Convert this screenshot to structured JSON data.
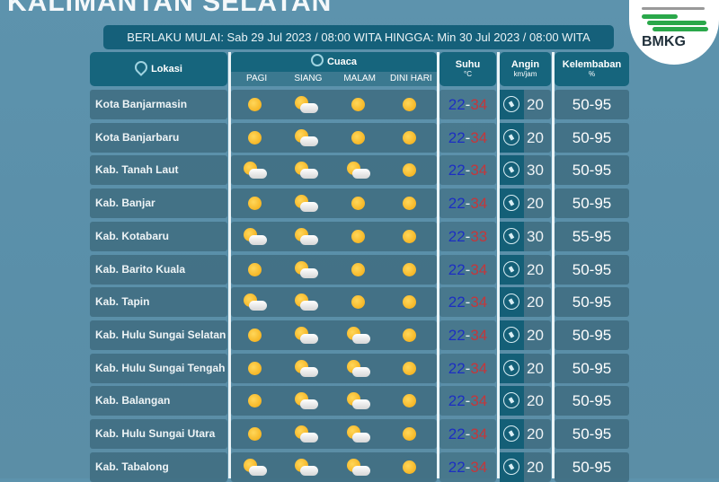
{
  "title": "KALIMANTAN SELATAN",
  "logo_text": "BMKG",
  "valid_period": "BERLAKU MULAI: Sab 29 Jul 2023 / 08:00 WITA HINGGA: Min 30 Jul 2023 / 08:00 WITA",
  "headers": {
    "lokasi": "Lokasi",
    "cuaca": "Cuaca",
    "cuaca_sub": [
      "PAGI",
      "SIANG",
      "MALAM",
      "DINI HARI"
    ],
    "suhu": "Suhu",
    "suhu_unit": "°C",
    "angin": "Angin",
    "angin_unit": "km/jam",
    "kelembaban": "Kelembaban",
    "kelembaban_unit": "%"
  },
  "colors": {
    "min_temp": "#1d2fc2",
    "max_temp": "#c4373b",
    "header": "#16657d"
  },
  "weather_icons": {
    "s": "sunny-icon",
    "c": "partly-cloudy-icon"
  },
  "rows": [
    {
      "lokasi": "Kota Banjarmasin",
      "cuaca": [
        "s",
        "c",
        "s",
        "s"
      ],
      "min": "22",
      "max": "34",
      "angin": "20",
      "kelembaban": "50-95"
    },
    {
      "lokasi": "Kota Banjarbaru",
      "cuaca": [
        "s",
        "c",
        "s",
        "s"
      ],
      "min": "22",
      "max": "34",
      "angin": "20",
      "kelembaban": "50-95"
    },
    {
      "lokasi": "Kab. Tanah Laut",
      "cuaca": [
        "c",
        "c",
        "c",
        "s"
      ],
      "min": "22",
      "max": "34",
      "angin": "30",
      "kelembaban": "50-95"
    },
    {
      "lokasi": "Kab. Banjar",
      "cuaca": [
        "s",
        "c",
        "s",
        "s"
      ],
      "min": "22",
      "max": "34",
      "angin": "20",
      "kelembaban": "50-95"
    },
    {
      "lokasi": "Kab. Kotabaru",
      "cuaca": [
        "c",
        "c",
        "s",
        "s"
      ],
      "min": "22",
      "max": "33",
      "angin": "30",
      "kelembaban": "55-95"
    },
    {
      "lokasi": "Kab. Barito Kuala",
      "cuaca": [
        "s",
        "c",
        "s",
        "s"
      ],
      "min": "22",
      "max": "34",
      "angin": "20",
      "kelembaban": "50-95"
    },
    {
      "lokasi": "Kab. Tapin",
      "cuaca": [
        "c",
        "c",
        "s",
        "s"
      ],
      "min": "22",
      "max": "34",
      "angin": "20",
      "kelembaban": "50-95"
    },
    {
      "lokasi": "Kab. Hulu Sungai Selatan",
      "cuaca": [
        "s",
        "c",
        "c",
        "s"
      ],
      "min": "22",
      "max": "34",
      "angin": "20",
      "kelembaban": "50-95"
    },
    {
      "lokasi": "Kab. Hulu Sungai Tengah",
      "cuaca": [
        "s",
        "c",
        "c",
        "s"
      ],
      "min": "22",
      "max": "34",
      "angin": "20",
      "kelembaban": "50-95"
    },
    {
      "lokasi": "Kab. Balangan",
      "cuaca": [
        "s",
        "c",
        "c",
        "s"
      ],
      "min": "22",
      "max": "34",
      "angin": "20",
      "kelembaban": "50-95"
    },
    {
      "lokasi": "Kab. Hulu Sungai Utara",
      "cuaca": [
        "s",
        "c",
        "c",
        "s"
      ],
      "min": "22",
      "max": "34",
      "angin": "20",
      "kelembaban": "50-95"
    },
    {
      "lokasi": "Kab. Tabalong",
      "cuaca": [
        "c",
        "c",
        "c",
        "s"
      ],
      "min": "22",
      "max": "34",
      "angin": "20",
      "kelembaban": "50-95"
    }
  ]
}
